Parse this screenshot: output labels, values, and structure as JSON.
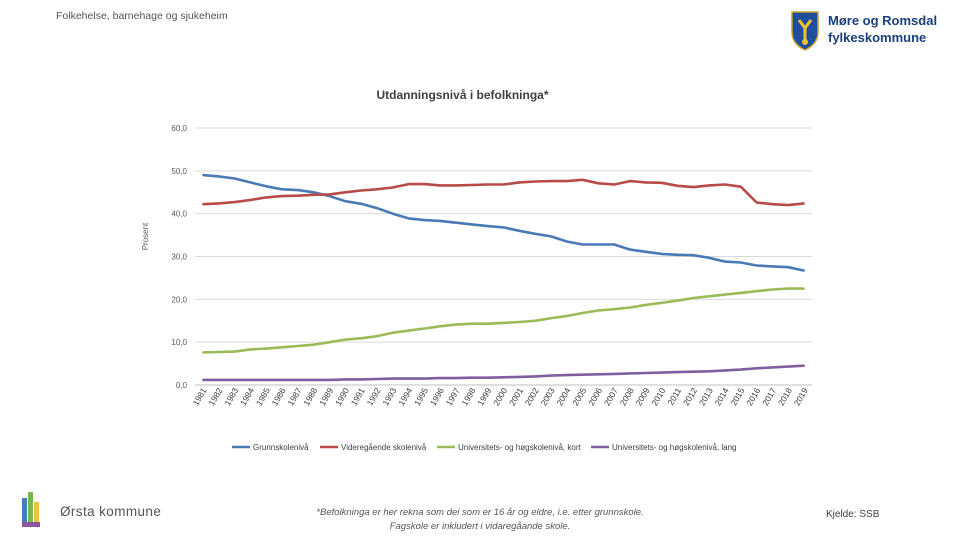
{
  "header": {
    "section_title": "Folkehelse, barnehage og sjukeheim",
    "org_name_line1": "Møre og Romsdal",
    "org_name_line2": "fylkeskommune"
  },
  "footer": {
    "municipality": "Ørsta kommune",
    "footnote_line1": "*Befolkninga er her rekna som dei som er 16 år og eldre, i.e. etter grunnskole.",
    "footnote_line2": "Fagskole er inkludert i vidaregåande skole.",
    "source": "Kjelde: SSB"
  },
  "chart_data": {
    "type": "line",
    "title": "Utdanningsnivå i befolkninga*",
    "xlabel": "",
    "ylabel": "Prosent",
    "ylim": [
      0,
      60
    ],
    "yticks": [
      "0,0",
      "10,0",
      "20,0",
      "30,0",
      "40,0",
      "50,0",
      "60,0"
    ],
    "grid": true,
    "legend": "bottom",
    "x": [
      "1981",
      "1982",
      "1983",
      "1984",
      "1985",
      "1986",
      "1987",
      "1988",
      "1989",
      "1990",
      "1991",
      "1992",
      "1993",
      "1994",
      "1995",
      "1996",
      "1997",
      "1998",
      "1999",
      "2000",
      "2001",
      "2002",
      "2003",
      "2004",
      "2005",
      "2006",
      "2007",
      "2008",
      "2009",
      "2010",
      "2011",
      "2012",
      "2013",
      "2014",
      "2015",
      "2016",
      "2017",
      "2018",
      "2019"
    ],
    "series": [
      {
        "name": "Grunnskolenivå",
        "color": "#4a7ab5",
        "values": [
          49.0,
          48.7,
          48.2,
          47.3,
          46.4,
          45.7,
          45.5,
          45.0,
          44.1,
          42.9,
          42.3,
          41.3,
          40.0,
          38.9,
          38.5,
          38.3,
          37.9,
          37.5,
          37.1,
          36.8,
          36.0,
          35.3,
          34.7,
          33.5,
          32.8,
          32.8,
          32.8,
          31.6,
          31.1,
          30.6,
          30.4,
          30.3,
          29.7,
          28.8,
          28.6,
          27.9,
          27.7,
          27.5,
          26.7
        ]
      },
      {
        "name": "Videregående skolenivå",
        "color": "#b84a48",
        "values": [
          42.2,
          42.4,
          42.7,
          43.2,
          43.8,
          44.1,
          44.2,
          44.4,
          44.5,
          45.0,
          45.4,
          45.7,
          46.1,
          46.9,
          46.9,
          46.6,
          46.6,
          46.7,
          46.8,
          46.8,
          47.3,
          47.5,
          47.6,
          47.6,
          47.9,
          47.1,
          46.8,
          47.6,
          47.3,
          47.2,
          46.5,
          46.2,
          46.6,
          46.8,
          46.3,
          42.6,
          42.2,
          42.0,
          42.4
        ]
      },
      {
        "name": "Universitets- og høgskolenivå, kort",
        "color": "#9bbb59",
        "values": [
          7.6,
          7.7,
          7.8,
          8.3,
          8.5,
          8.8,
          9.1,
          9.4,
          10.0,
          10.6,
          10.9,
          11.4,
          12.2,
          12.7,
          13.2,
          13.7,
          14.1,
          14.3,
          14.3,
          14.5,
          14.7,
          15.0,
          15.6,
          16.1,
          16.8,
          17.4,
          17.7,
          18.1,
          18.7,
          19.2,
          19.7,
          20.3,
          20.7,
          21.1,
          21.5,
          21.9,
          22.3,
          22.5,
          22.5
        ]
      },
      {
        "name": "Universitets- og høgskolenivå, lang",
        "color": "#7f5fa0",
        "values": [
          1.2,
          1.2,
          1.2,
          1.2,
          1.2,
          1.2,
          1.2,
          1.2,
          1.2,
          1.3,
          1.3,
          1.4,
          1.5,
          1.5,
          1.5,
          1.6,
          1.6,
          1.7,
          1.7,
          1.8,
          1.9,
          2.0,
          2.2,
          2.3,
          2.4,
          2.5,
          2.6,
          2.7,
          2.8,
          2.9,
          3.0,
          3.1,
          3.2,
          3.4,
          3.6,
          3.9,
          4.1,
          4.3,
          4.5
        ]
      }
    ]
  }
}
